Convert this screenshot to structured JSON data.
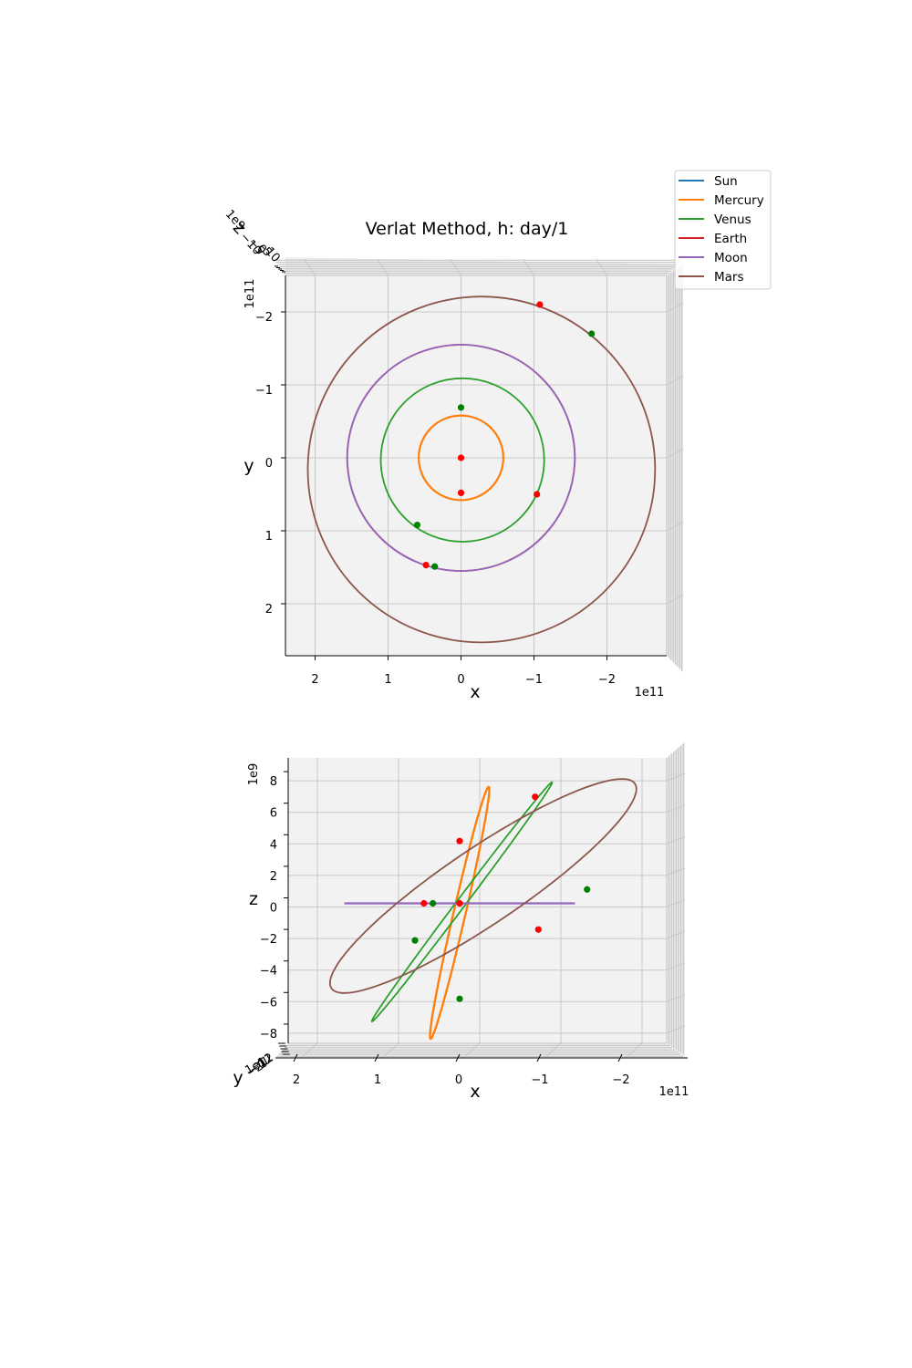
{
  "chart_data": [
    {
      "type": "line",
      "view": "x-y projection (top)",
      "title": "Verlat Method, h: day/1",
      "xlabel": "x",
      "ylabel": "y",
      "zlabel": "z",
      "x_offset_label": "1e11",
      "y_offset_label": "1e11",
      "x_axis_inverted": true,
      "y_axis_inverted": true,
      "xlim": [
        2.4,
        -2.8
      ],
      "ylim": [
        2.7,
        -2.5
      ],
      "x_ticks": [
        "2",
        "1",
        "0",
        "−1",
        "−2"
      ],
      "y_ticks": [
        "−2",
        "−1",
        "0",
        "1",
        "2"
      ],
      "grid": true,
      "legend_placement": "top-right",
      "series": [
        {
          "name": "Sun",
          "color": "#1f77b4",
          "shape": "point",
          "center": [
            0,
            0
          ]
        },
        {
          "name": "Mercury",
          "color": "#ff7f0e",
          "shape": "ellipse",
          "center": [
            0.0,
            0.0
          ],
          "radius_x": 0.58,
          "radius_y": 0.58
        },
        {
          "name": "Venus",
          "color": "#2ca02c",
          "shape": "ellipse",
          "center": [
            -0.02,
            0.03
          ],
          "radius_x": 1.12,
          "radius_y": 1.12
        },
        {
          "name": "Earth",
          "color": "#d62728",
          "shape": "ellipse",
          "center": [
            -0.0,
            0.0
          ],
          "radius_x": 1.56,
          "radius_y": 1.55
        },
        {
          "name": "Moon",
          "color": "#9467bd",
          "shape": "ellipse",
          "center": [
            -0.0,
            0.0
          ],
          "radius_x": 1.56,
          "radius_y": 1.55
        },
        {
          "name": "Mars",
          "color": "#8c564b",
          "shape": "ellipse",
          "center": [
            -0.28,
            0.16
          ],
          "radius_x": 2.38,
          "radius_y": 2.37
        }
      ],
      "markers": {
        "red": [
          [
            0.0,
            0.0
          ],
          [
            0.0,
            0.48
          ],
          [
            -1.04,
            0.5
          ],
          [
            0.48,
            1.47
          ],
          [
            -1.08,
            -2.1
          ]
        ],
        "green": [
          [
            0.0,
            -0.69
          ],
          [
            0.6,
            0.92
          ],
          [
            0.36,
            1.49
          ],
          [
            -1.79,
            -1.7
          ]
        ]
      }
    },
    {
      "type": "line",
      "view": "x-z projection (side)",
      "xlabel": "x",
      "ylabel": "y",
      "zlabel": "z",
      "x_offset_label": "1e11",
      "z_offset_label": "1e9",
      "x_axis_inverted": true,
      "xlim": [
        2.3,
        -2.8
      ],
      "zlim": [
        -9.4,
        9.4
      ],
      "x_ticks": [
        "2",
        "1",
        "0",
        "−1",
        "−2"
      ],
      "z_ticks": [
        "8",
        "6",
        "4",
        "2",
        "0",
        "−2",
        "−4",
        "−6",
        "−8"
      ],
      "grid": true,
      "series": [
        {
          "name": "Mercury",
          "color": "#ff7f0e",
          "shape": "tilted-ellipse",
          "center": [
            0.0,
            -0.6
          ],
          "semi_major": 8.2,
          "semi_minor": 0.38,
          "angle_deg": 77
        },
        {
          "name": "Venus",
          "color": "#2ca02c",
          "shape": "tilted-ellipse",
          "center": [
            -0.03,
            0.1
          ],
          "semi_major": 9.5,
          "semi_minor": 0.28,
          "angle_deg": 53
        },
        {
          "name": "Moon",
          "color": "#9467bd",
          "shape": "line",
          "x": [
            1.42,
            -1.42
          ],
          "z": [
            0.0,
            0.0
          ]
        },
        {
          "name": "Mars",
          "color": "#8c564b",
          "shape": "tilted-ellipse",
          "center": [
            -0.29,
            1.1
          ],
          "semi_major": 11.6,
          "semi_minor": 2.4,
          "angle_deg": 34
        }
      ],
      "markers": {
        "red": [
          [
            0.0,
            0.0
          ],
          [
            0.0,
            3.95
          ],
          [
            0.44,
            0.0
          ],
          [
            -0.93,
            6.75
          ],
          [
            -0.97,
            -1.66
          ]
        ],
        "green": [
          [
            0.0,
            -6.05
          ],
          [
            0.33,
            0.0
          ],
          [
            0.55,
            -2.35
          ],
          [
            -1.57,
            0.88
          ]
        ]
      }
    }
  ],
  "labels": {
    "z_top": "z",
    "z_offset_top": "1e9",
    "y_bottom": "y",
    "y_offset_bottom": "1e11",
    "z_tick_small": [
      "−10",
      "−5",
      "0",
      "5",
      "10"
    ],
    "y_tick_small": [
      "−2",
      "−1",
      "0",
      "1",
      "2"
    ]
  }
}
